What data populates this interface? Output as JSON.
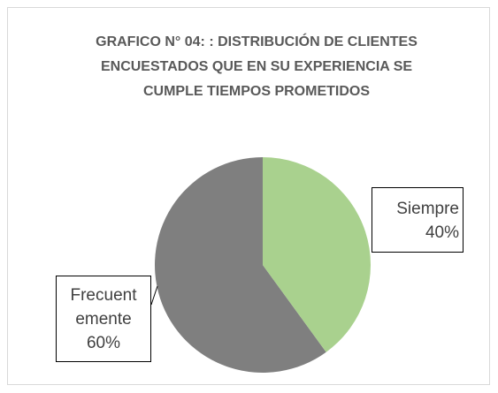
{
  "chart_data": {
    "type": "pie",
    "title": "GRAFICO N° 04: : DISTRIBUCIÓN DE CLIENTES ENCUESTADOS QUE EN SU EXPERIENCIA SE CUMPLE TIEMPOS PROMETIDOS",
    "categories": [
      "Siempre",
      "Frecuentemente"
    ],
    "values": [
      40,
      60
    ],
    "value_labels": [
      "40%",
      "60%"
    ],
    "colors": [
      "#a9d18e",
      "#7f7f7f"
    ]
  }
}
